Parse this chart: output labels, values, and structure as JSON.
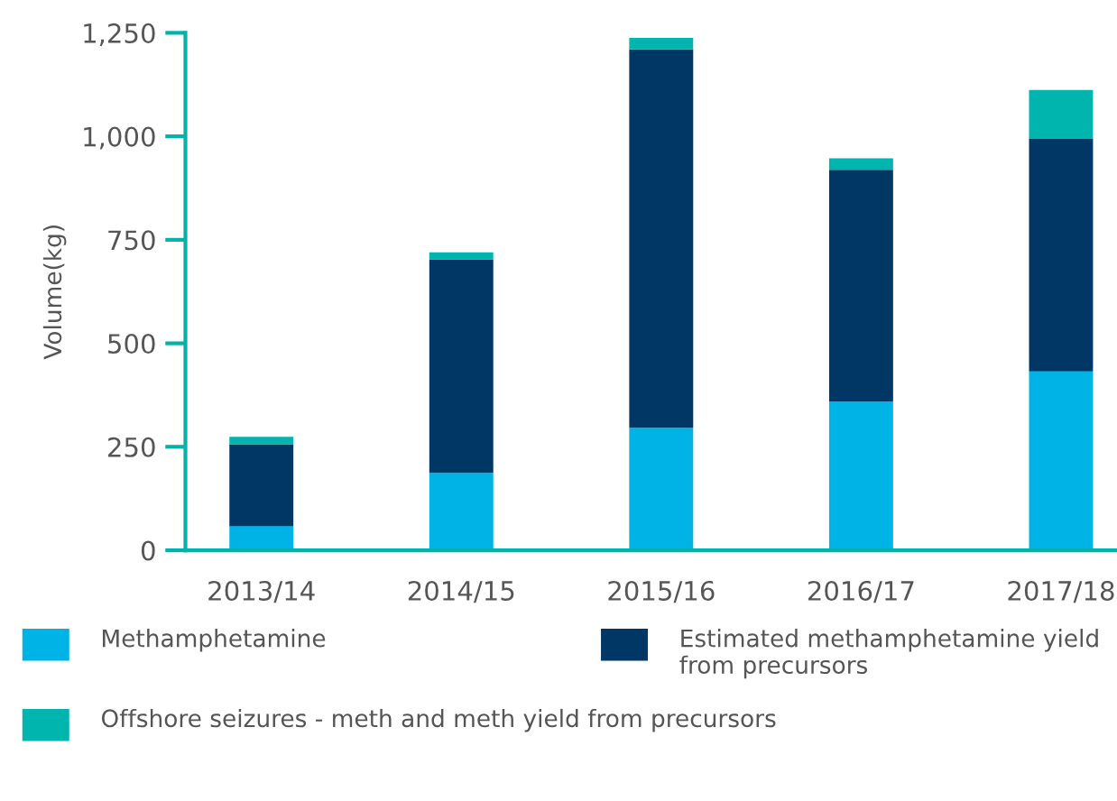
{
  "chart_data": {
    "type": "bar",
    "stacked": true,
    "ylabel": "Volume(kg)",
    "categories": [
      "2013/14",
      "2014/15",
      "2015/16",
      "2016/17",
      "2017/18"
    ],
    "series": [
      {
        "name": "Methamphetamine",
        "color": "#00b3e6",
        "values": [
          58,
          187,
          296,
          359,
          432
        ]
      },
      {
        "name": "Estimated methamphetamine yield from precursors",
        "color": "#003764",
        "values": [
          198,
          516,
          914,
          560,
          562
        ]
      },
      {
        "name": "Offshore seizures - meth and meth yield from precursors",
        "color": "#00b5ad",
        "values": [
          18,
          17,
          28,
          28,
          118
        ]
      }
    ],
    "ylim": [
      0,
      1250
    ],
    "yticks": [
      0,
      250,
      500,
      750,
      {
        "value": 1000,
        "label": "1,000"
      },
      {
        "value": 1250,
        "label": "1,250"
      }
    ],
    "grid": false,
    "legend": "bottom"
  }
}
